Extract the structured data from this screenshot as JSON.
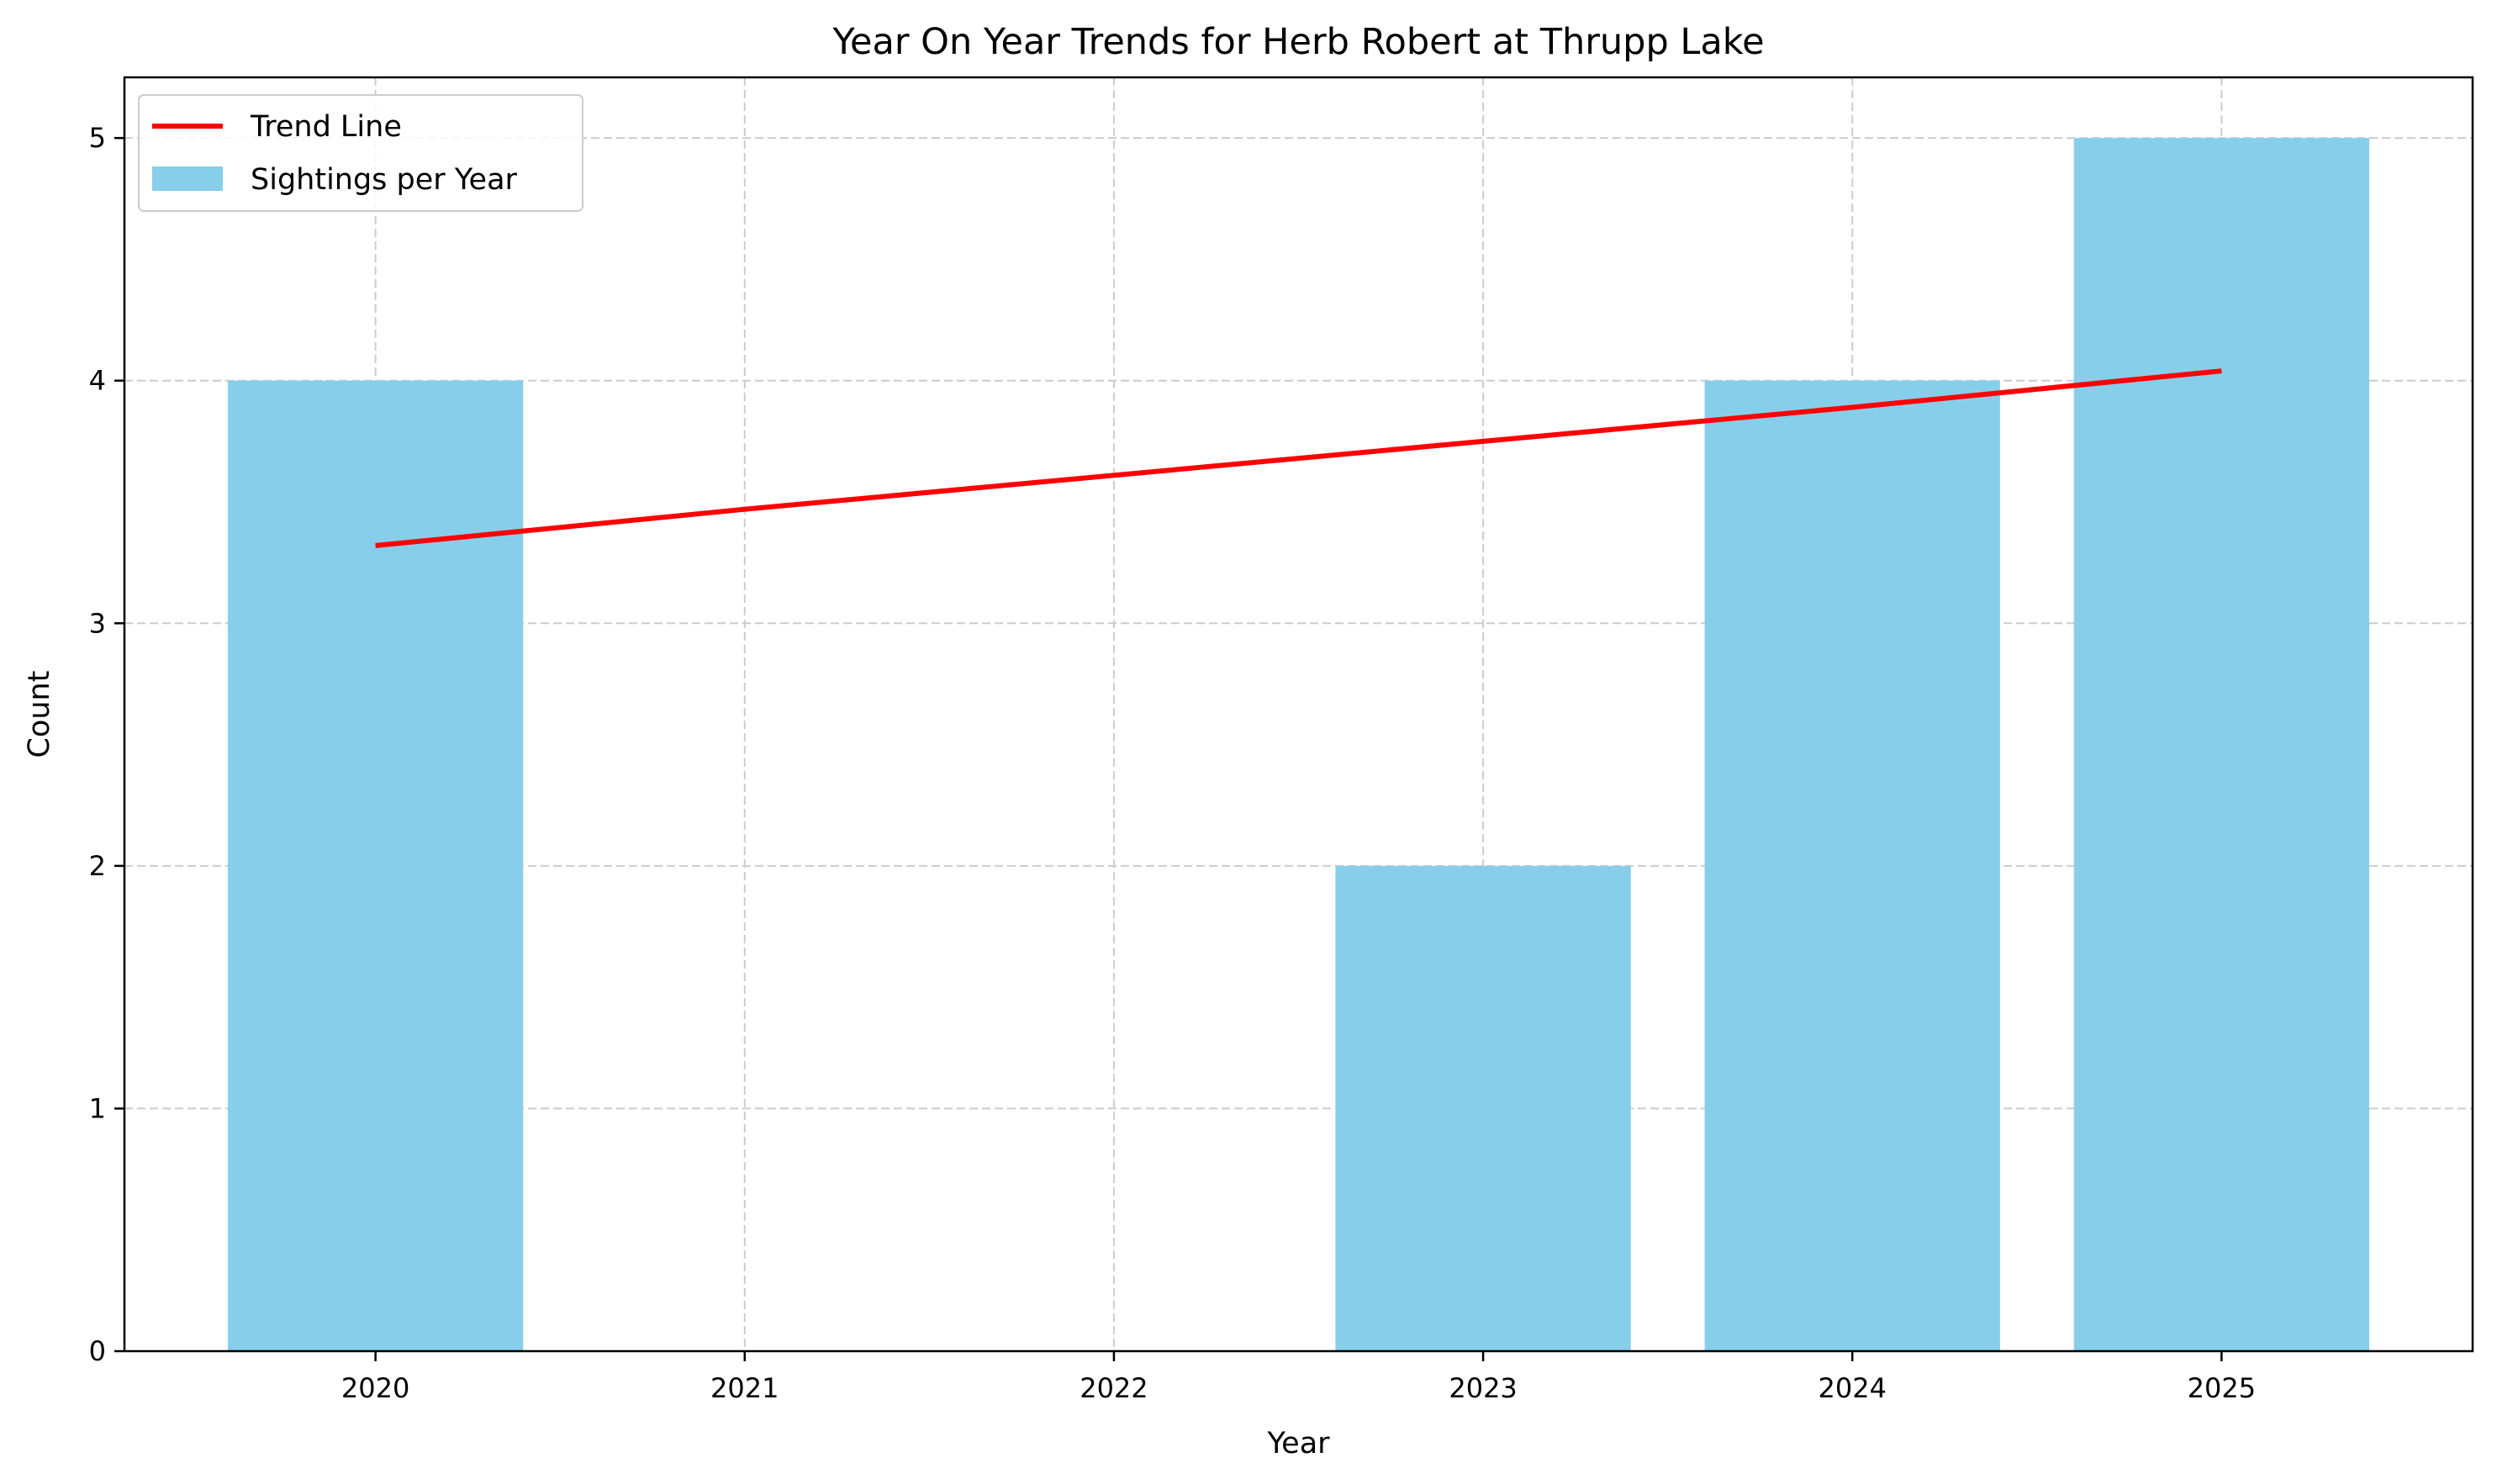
{
  "chart_data": {
    "type": "bar",
    "title": "Year On Year Trends for Herb Robert at Thrupp Lake",
    "xlabel": "Year",
    "ylabel": "Count",
    "categories": [
      "2020",
      "2021",
      "2022",
      "2023",
      "2024",
      "2025"
    ],
    "series": [
      {
        "name": "Sightings per Year",
        "type": "bar",
        "color": "#87CEEB",
        "values": [
          4,
          0,
          0,
          2,
          4,
          5
        ]
      },
      {
        "name": "Trend Line",
        "type": "line",
        "color": "#FF0000",
        "values": [
          3.32,
          3.47,
          3.61,
          3.75,
          3.89,
          4.04
        ]
      }
    ],
    "ylim": [
      0,
      5.25
    ],
    "yticks": [
      0,
      1,
      2,
      3,
      4,
      5
    ],
    "grid": true,
    "legend": "top-left"
  }
}
